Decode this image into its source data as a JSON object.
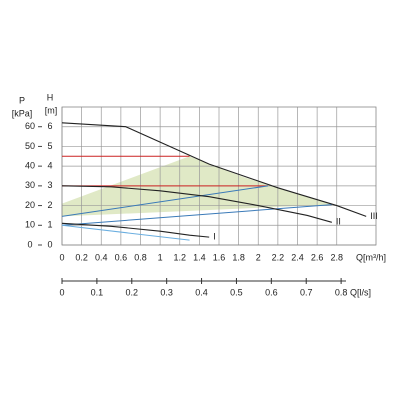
{
  "chart_data": {
    "type": "line",
    "y_label": "H",
    "y_unit": "[m]",
    "y2_label": "P",
    "y2_unit": "[kPa]",
    "x_label": "Q[m³/h]",
    "x2_label": "Q[l/s]",
    "xlim": [
      0,
      3.2
    ],
    "xticks": [
      0,
      0.2,
      0.4,
      0.6,
      0.8,
      1.0,
      1.2,
      1.4,
      1.6,
      1.8,
      2.0,
      2.2,
      2.4,
      2.6,
      2.8
    ],
    "ylim": [
      0,
      7
    ],
    "yticks": [
      0,
      1,
      2,
      3,
      4,
      5,
      6
    ],
    "y2lim": [
      0,
      70
    ],
    "y2ticks": [
      0,
      10,
      20,
      30,
      40,
      50,
      60
    ],
    "x2lim": [
      0,
      0.9
    ],
    "x2ticks": [
      0,
      0.1,
      0.2,
      0.3,
      0.4,
      0.5,
      0.6,
      0.7,
      0.8
    ],
    "grid": true,
    "area": {
      "color": "#e0e9c6",
      "x": [
        0,
        1.3,
        1.5,
        1.85,
        2.2,
        2.5,
        2.75,
        0
      ],
      "y": [
        2.1,
        4.5,
        4.1,
        3.45,
        2.9,
        2.45,
        2.05,
        1.45
      ]
    },
    "series": [
      {
        "name": "III",
        "color": "#222222",
        "x": [
          0,
          0.65,
          1.5,
          2.2,
          2.8,
          3.1
        ],
        "y": [
          6.2,
          6.0,
          4.1,
          2.9,
          2.0,
          1.45
        ]
      },
      {
        "name": "II",
        "color": "#222222",
        "x": [
          0,
          0.5,
          1.0,
          1.5,
          2.0,
          2.5,
          2.75
        ],
        "y": [
          3.0,
          2.95,
          2.75,
          2.45,
          2.0,
          1.5,
          1.15
        ]
      },
      {
        "name": "I",
        "color": "#222222",
        "x": [
          0,
          0.5,
          1.0,
          1.3,
          1.5
        ],
        "y": [
          1.1,
          0.95,
          0.7,
          0.5,
          0.4
        ]
      }
    ],
    "lines": [
      {
        "color": "#cc2222",
        "x": [
          0,
          1.3
        ],
        "y": [
          4.5,
          4.5
        ]
      },
      {
        "color": "#cc2222",
        "x": [
          0,
          2.1
        ],
        "y": [
          3.0,
          3.0
        ]
      },
      {
        "color": "#3a7ab8",
        "x": [
          0,
          2.1
        ],
        "y": [
          1.45,
          3.0
        ]
      },
      {
        "color": "#3a7ab8",
        "x": [
          0,
          2.75
        ],
        "y": [
          1.0,
          2.05
        ]
      },
      {
        "color": "#6aaee0",
        "x": [
          0,
          1.3
        ],
        "y": [
          1.0,
          0.25
        ]
      }
    ]
  }
}
